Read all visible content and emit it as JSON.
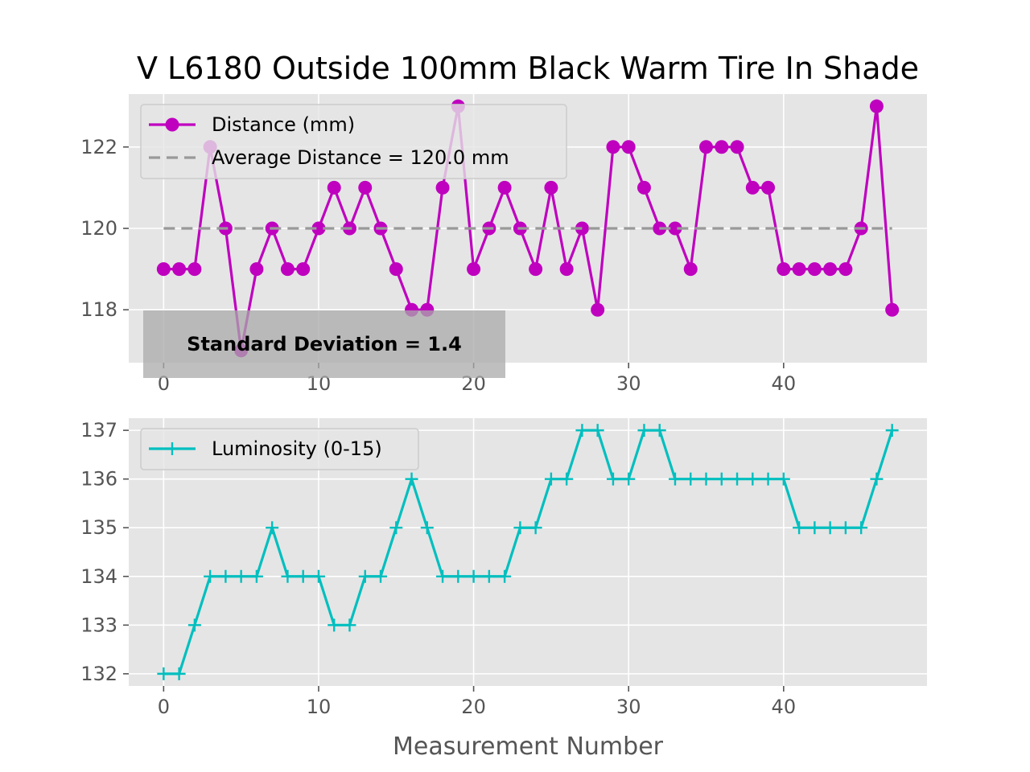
{
  "figure": {
    "title": "V L6180 Outside 100mm Black Warm Tire In Shade"
  },
  "chart_data": [
    {
      "type": "line",
      "x": [
        0,
        1,
        2,
        3,
        4,
        5,
        6,
        7,
        8,
        9,
        10,
        11,
        12,
        13,
        14,
        15,
        16,
        17,
        18,
        19,
        20,
        21,
        22,
        23,
        24,
        25,
        26,
        27,
        28,
        29,
        30,
        31,
        32,
        33,
        34,
        35,
        36,
        37,
        38,
        39,
        40,
        41,
        42,
        43,
        44,
        45,
        46,
        47
      ],
      "series": [
        {
          "name": "Distance (mm)",
          "values": [
            119,
            119,
            119,
            122,
            120,
            117,
            119,
            120,
            119,
            119,
            120,
            121,
            120,
            121,
            120,
            119,
            118,
            118,
            121,
            123,
            119,
            120,
            121,
            120,
            119,
            121,
            119,
            120,
            118,
            122,
            122,
            121,
            120,
            120,
            119,
            122,
            122,
            122,
            121,
            121,
            119,
            119,
            119,
            119,
            119,
            120,
            123,
            118
          ],
          "color": "#bf00bf",
          "marker": "circle"
        },
        {
          "name": "Average Distance = 120.0 mm",
          "values_constant": 120.0,
          "color": "#999999",
          "style": "dashed"
        }
      ],
      "xticks": [
        "0",
        "10",
        "20",
        "30",
        "40"
      ],
      "yticks": [
        "118",
        "120",
        "122"
      ],
      "xlim": [
        -2.25,
        49.25
      ],
      "ylim": [
        116.7,
        123.3
      ],
      "annotation": "Standard Deviation = 1.4",
      "legend_position": "upper-left",
      "grid": true
    },
    {
      "type": "line",
      "x": [
        0,
        1,
        2,
        3,
        4,
        5,
        6,
        7,
        8,
        9,
        10,
        11,
        12,
        13,
        14,
        15,
        16,
        17,
        18,
        19,
        20,
        21,
        22,
        23,
        24,
        25,
        26,
        27,
        28,
        29,
        30,
        31,
        32,
        33,
        34,
        35,
        36,
        37,
        38,
        39,
        40,
        41,
        42,
        43,
        44,
        45,
        46,
        47
      ],
      "series": [
        {
          "name": "Luminosity (0-15)",
          "values": [
            132,
            132,
            133,
            134,
            134,
            134,
            134,
            135,
            134,
            134,
            134,
            133,
            133,
            134,
            134,
            135,
            136,
            135,
            134,
            134,
            134,
            134,
            134,
            135,
            135,
            136,
            136,
            137,
            137,
            136,
            136,
            137,
            137,
            136,
            136,
            136,
            136,
            136,
            136,
            136,
            136,
            135,
            135,
            135,
            135,
            135,
            136,
            137
          ],
          "color": "#00bfbf",
          "marker": "plus"
        }
      ],
      "xticks": [
        "0",
        "10",
        "20",
        "30",
        "40"
      ],
      "yticks": [
        "132",
        "133",
        "134",
        "135",
        "136",
        "137"
      ],
      "xlim": [
        -2.25,
        49.25
      ],
      "ylim": [
        131.75,
        137.25
      ],
      "xlabel": "Measurement Number",
      "legend_position": "upper-left",
      "grid": true
    }
  ]
}
